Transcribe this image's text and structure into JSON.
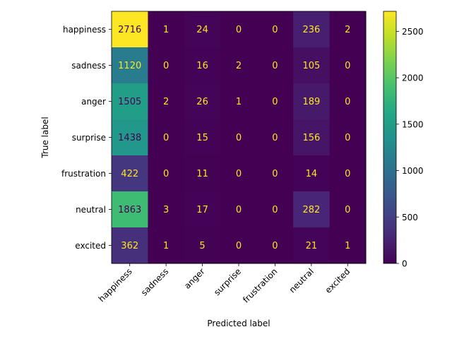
{
  "chart_data": {
    "type": "heatmap",
    "title": "",
    "xlabel": "Predicted label",
    "ylabel": "True label",
    "x_categories": [
      "happiness",
      "sadness",
      "anger",
      "surprise",
      "frustration",
      "neutral",
      "excited"
    ],
    "y_categories": [
      "happiness",
      "sadness",
      "anger",
      "surprise",
      "frustration",
      "neutral",
      "excited"
    ],
    "values": [
      [
        2716,
        1,
        24,
        0,
        0,
        236,
        2
      ],
      [
        1120,
        0,
        16,
        2,
        0,
        105,
        0
      ],
      [
        1505,
        2,
        26,
        1,
        0,
        189,
        0
      ],
      [
        1438,
        0,
        15,
        0,
        0,
        156,
        0
      ],
      [
        422,
        0,
        11,
        0,
        0,
        14,
        0
      ],
      [
        1863,
        3,
        17,
        0,
        0,
        282,
        0
      ],
      [
        362,
        1,
        5,
        0,
        0,
        21,
        1
      ]
    ],
    "colormap": "viridis",
    "vmin": 0,
    "vmax": 2716,
    "colorbar_ticks": [
      0,
      500,
      1000,
      1500,
      2000,
      2500
    ],
    "x_tick_rotation": 45,
    "grid": false
  }
}
